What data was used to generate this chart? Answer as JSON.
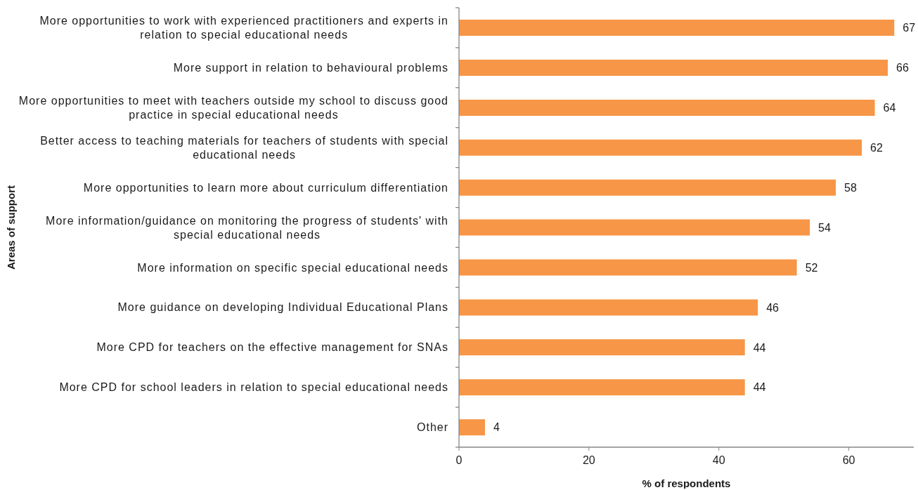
{
  "chart_data": {
    "type": "bar",
    "orientation": "horizontal",
    "ylabel": "Areas of support",
    "xlabel": "% of respondents",
    "categories": [
      "More opportunities to work with experienced practitioners and experts in relation to special educational needs",
      "More support in relation to behavioural problems",
      "More opportunities to meet with teachers outside my school to discuss good practice in special educational needs",
      "Better access to teaching materials for teachers of students with special educational needs",
      "More opportunities to learn more about curriculum differentiation",
      "More information/guidance on monitoring the progress of students' with special educational needs",
      "More information on specific special educational needs",
      "More guidance on developing Individual Educational Plans",
      "More CPD for teachers on the effective management for SNAs",
      "More CPD for school leaders in relation to special educational needs",
      "Other"
    ],
    "values": [
      67,
      66,
      64,
      62,
      58,
      54,
      52,
      46,
      44,
      44,
      4
    ],
    "color": "#f79646",
    "xlim": [
      0,
      70
    ],
    "xticks": [
      0,
      20,
      40,
      60
    ],
    "data_labels": true
  }
}
